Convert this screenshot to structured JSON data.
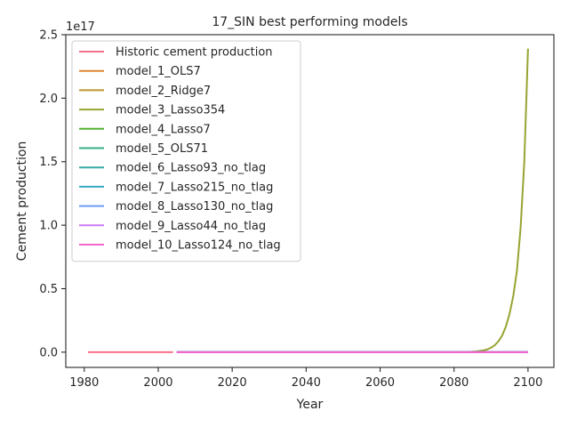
{
  "chart_data": {
    "type": "line",
    "title": "17_SIN best performing models",
    "xlabel": "Year",
    "ylabel": "Cement production",
    "y_offset_label": "1e17",
    "xlim": [
      1975,
      2107
    ],
    "ylim": [
      -0.12,
      2.5
    ],
    "y_scale_multiplier": 1e+17,
    "x_ticks": [
      1980,
      2000,
      2020,
      2040,
      2060,
      2080,
      2100
    ],
    "x_tick_labels": [
      "1980",
      "2000",
      "2020",
      "2040",
      "2060",
      "2080",
      "2100"
    ],
    "y_ticks": [
      0.0,
      0.5,
      1.0,
      1.5,
      2.0,
      2.5
    ],
    "y_tick_labels": [
      "0.0",
      "0.5",
      "1.0",
      "1.5",
      "2.0",
      "2.5"
    ],
    "grid": false,
    "legend_position": "upper-left",
    "series": [
      {
        "name": "Historic cement production",
        "color": "#f77189",
        "x": [
          1981,
          2004
        ],
        "y": [
          0.0,
          0.0
        ]
      },
      {
        "name": "model_1_OLS7",
        "color": "#e18532",
        "x": [
          2005,
          2100
        ],
        "y": [
          0.0,
          0.0
        ]
      },
      {
        "name": "model_2_Ridge7",
        "color": "#bb9832",
        "x": [
          2005,
          2100
        ],
        "y": [
          0.0,
          0.0
        ]
      },
      {
        "name": "model_3_Lasso354",
        "color": "#97a431",
        "x": [
          2005,
          2080,
          2084,
          2086,
          2088,
          2089,
          2090,
          2091,
          2092,
          2093,
          2094,
          2095,
          2096,
          2097,
          2098,
          2099,
          2100
        ],
        "y": [
          0.0,
          0.0,
          0.002,
          0.006,
          0.014,
          0.022,
          0.035,
          0.055,
          0.085,
          0.13,
          0.2,
          0.3,
          0.44,
          0.64,
          0.98,
          1.5,
          2.39
        ]
      },
      {
        "name": "model_4_Lasso7",
        "color": "#50b131",
        "x": [
          2005,
          2100
        ],
        "y": [
          0.0,
          0.0
        ]
      },
      {
        "name": "model_5_OLS71",
        "color": "#34af84",
        "x": [
          2005,
          2100
        ],
        "y": [
          0.0,
          0.0
        ]
      },
      {
        "name": "model_6_Lasso93_no_tlag",
        "color": "#36ada4",
        "x": [
          2005,
          2100
        ],
        "y": [
          0.0,
          0.0
        ]
      },
      {
        "name": "model_7_Lasso215_no_tlag",
        "color": "#38a9c5",
        "x": [
          2005,
          2100
        ],
        "y": [
          0.0,
          0.0
        ]
      },
      {
        "name": "model_8_Lasso130_no_tlag",
        "color": "#6e9bf4",
        "x": [
          2005,
          2100
        ],
        "y": [
          0.0,
          0.0
        ]
      },
      {
        "name": "model_9_Lasso44_no_tlag",
        "color": "#cc7af4",
        "x": [
          2005,
          2100
        ],
        "y": [
          0.0,
          0.0
        ]
      },
      {
        "name": "model_10_Lasso124_no_tlag",
        "color": "#f565cc",
        "x": [
          2005,
          2100
        ],
        "y": [
          0.0,
          0.0
        ]
      }
    ]
  }
}
